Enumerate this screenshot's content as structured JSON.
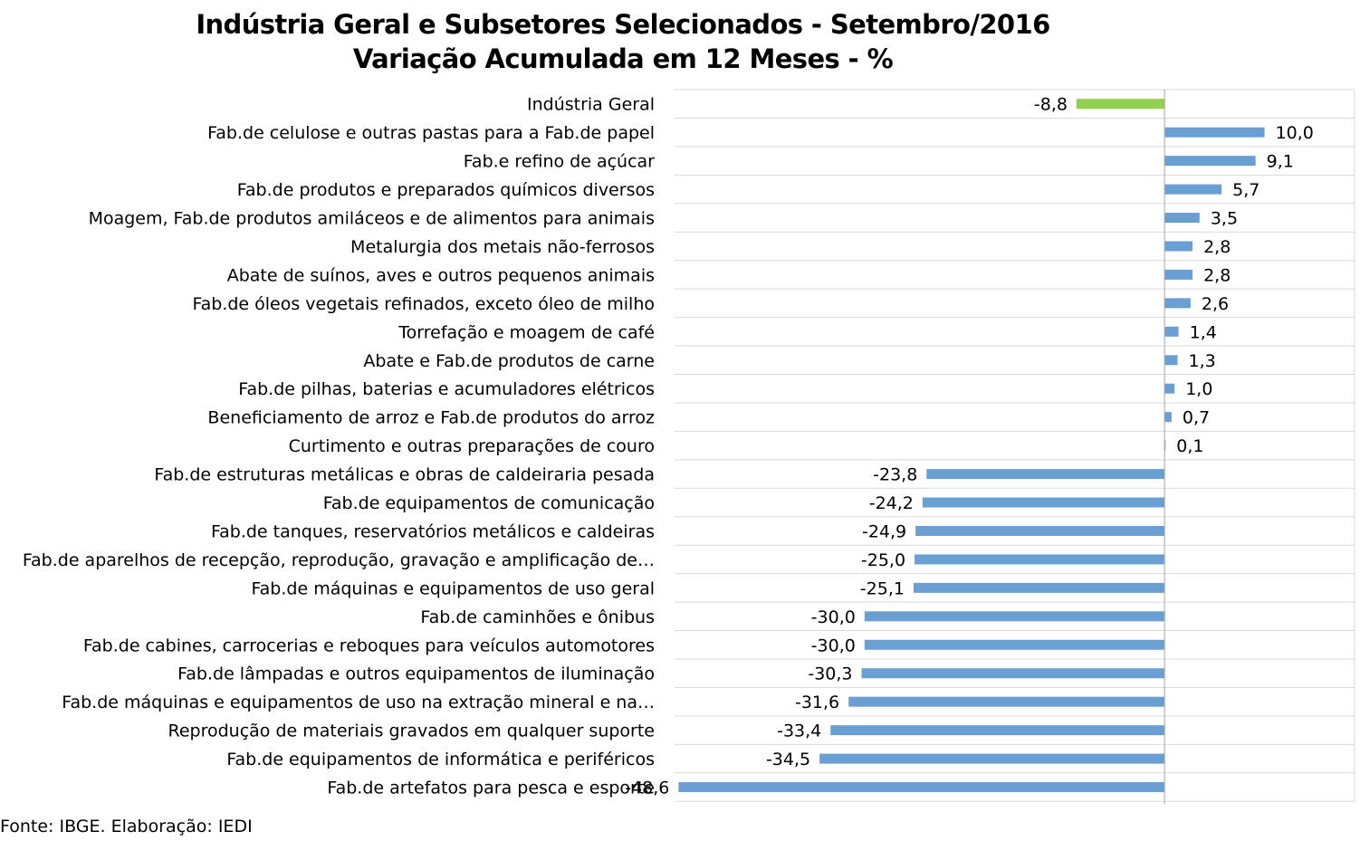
{
  "chart_data": {
    "type": "bar",
    "orientation": "horizontal",
    "title": "Indústria Geral e Subsetores Selecionados - Setembro/2016",
    "subtitle": "Variação Acumulada em 12 Meses - %",
    "categories": [
      "Indústria Geral",
      "Fab.de celulose e outras pastas para a Fab.de papel",
      "Fab.e refino de açúcar",
      "Fab.de produtos e preparados químicos diversos",
      "Moagem, Fab.de produtos amiláceos e de alimentos para animais",
      "Metalurgia dos metais não-ferrosos",
      "Abate de suínos, aves e outros pequenos animais",
      "Fab.de óleos vegetais refinados, exceto óleo de milho",
      "Torrefação e moagem de café",
      "Abate e Fab.de produtos de carne",
      "Fab.de pilhas, baterias e acumuladores elétricos",
      "Beneficiamento de arroz e Fab.de produtos do arroz",
      "Curtimento e outras preparações de couro",
      "Fab.de estruturas metálicas e obras de caldeiraria pesada",
      "Fab.de equipamentos de comunicação",
      "Fab.de tanques, reservatórios metálicos e caldeiras",
      "Fab.de aparelhos de recepção, reprodução, gravação e amplificação de…",
      "Fab.de máquinas e equipamentos de uso geral",
      "Fab.de caminhões e ônibus",
      "Fab.de cabines, carrocerias e reboques para veículos automotores",
      "Fab.de lâmpadas e outros equipamentos de iluminação",
      "Fab.de máquinas e equipamentos de uso na extração mineral e na…",
      "Reprodução de materiais gravados em qualquer suporte",
      "Fab.de equipamentos de informática e periféricos",
      "Fab.de artefatos para pesca e esporte"
    ],
    "values": [
      -8.8,
      10.0,
      9.1,
      5.7,
      3.5,
      2.8,
      2.8,
      2.6,
      1.4,
      1.3,
      1.0,
      0.7,
      0.1,
      -23.8,
      -24.2,
      -24.9,
      -25.0,
      -25.1,
      -30.0,
      -30.0,
      -30.3,
      -31.6,
      -33.4,
      -34.5,
      -48.6
    ],
    "value_labels": [
      "-8,8",
      "10,0",
      "9,1",
      "5,7",
      "3,5",
      "2,8",
      "2,8",
      "2,6",
      "1,4",
      "1,3",
      "1,0",
      "0,7",
      "0,1",
      "-23,8",
      "-24,2",
      "-24,9",
      "-25,0",
      "-25,1",
      "-30,0",
      "-30,0",
      "-30,3",
      "-31,6",
      "-33,4",
      "-34,5",
      "-48,6"
    ],
    "xlim": [
      -49,
      19
    ],
    "grid": "horizontal-lines",
    "legend": "none",
    "colors": {
      "highlight": "#92d050",
      "default": "#6a9fd4",
      "grid": "#d9d9d9",
      "axis": "#a6a6a6"
    },
    "highlight_index": 0
  },
  "footer": {
    "source": "Fonte: IBGE. Elaboração: IEDI"
  }
}
